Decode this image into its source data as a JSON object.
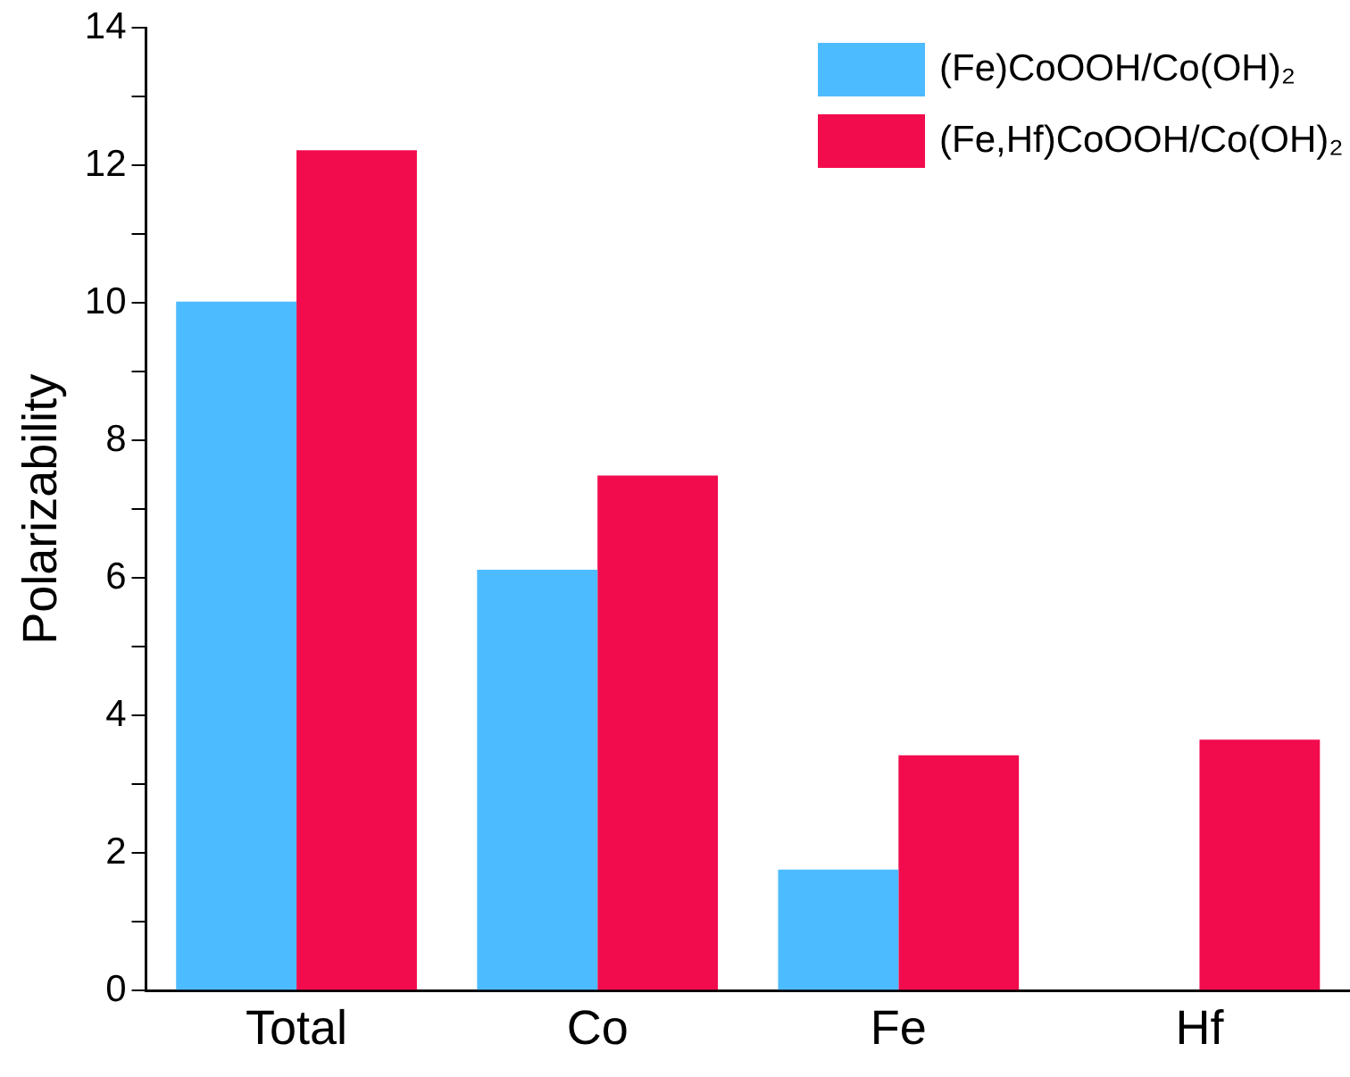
{
  "chart_data": {
    "type": "bar",
    "ylabel": "Polarizability",
    "categories": [
      "Total",
      "Co",
      "Fe",
      "Hf"
    ],
    "series": [
      {
        "name": "(Fe)CoOOH/Co(OH)₂",
        "color": "#4dbbff",
        "values": [
          10.02,
          6.12,
          1.76,
          0
        ]
      },
      {
        "name": "(Fe,Hf)CoOOH/Co(OH)₂",
        "color": "#f20c4e",
        "values": [
          12.22,
          7.49,
          3.42,
          3.65
        ]
      }
    ],
    "ylim": [
      0,
      14
    ],
    "yticks": [
      0,
      {
        "value": 1,
        "label": null
      },
      2,
      {
        "value": 3,
        "label": null
      },
      4,
      {
        "value": 5,
        "label": null
      },
      6,
      {
        "value": 7,
        "label": null
      },
      8,
      {
        "value": 9,
        "label": null
      },
      10,
      {
        "value": 11,
        "label": null
      },
      12,
      {
        "value": 13,
        "label": null
      },
      14
    ],
    "grid": false,
    "legend": "top right"
  }
}
